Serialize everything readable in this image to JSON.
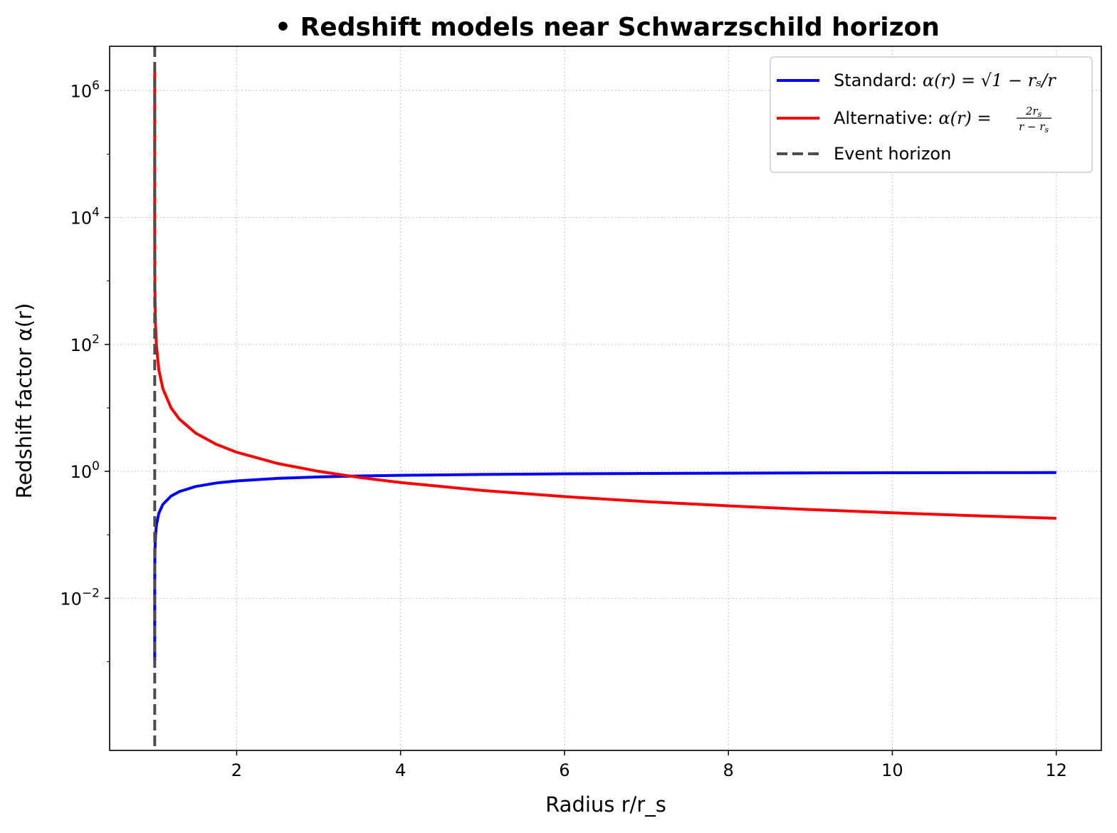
{
  "chart_data": {
    "type": "line",
    "title": "• Redshift models near Schwarzschild horizon",
    "xlabel": "Radius r/r_s",
    "ylabel": "Redshift factor α(r)",
    "x_scale": "linear",
    "y_scale": "log",
    "xlim": [
      0.45,
      12.55
    ],
    "ylim": [
      4e-05,
      5000000
    ],
    "x_ticks": [
      2,
      4,
      6,
      8,
      10,
      12
    ],
    "x_tick_labels": [
      "2",
      "4",
      "6",
      "8",
      "10",
      "12"
    ],
    "y_ticks": [
      0.01,
      1,
      100,
      10000,
      1000000
    ],
    "y_tick_labels": [
      {
        "base": "10",
        "exp": "−2"
      },
      {
        "base": "10",
        "exp": "0"
      },
      {
        "base": "10",
        "exp": "2"
      },
      {
        "base": "10",
        "exp": "4"
      },
      {
        "base": "10",
        "exp": "6"
      }
    ],
    "grid": true,
    "legend_position": "upper-right",
    "series": [
      {
        "name": "Standard: α(r) = √(1 − r_s/r)",
        "legend_text": "Standard: ",
        "legend_math": "α(r) = √1 − rₛ/r",
        "color": "#0000ff",
        "style": "solid",
        "x": [
          1.000001,
          1.00001,
          1.0001,
          1.001,
          1.003,
          1.01,
          1.02,
          1.05,
          1.1,
          1.2,
          1.3,
          1.5,
          1.75,
          2.0,
          2.5,
          3.0,
          3.5,
          4.0,
          5.0,
          6.0,
          7.0,
          8.0,
          9.0,
          10.0,
          11.0,
          12.0
        ],
        "y": [
          0.001,
          0.00316,
          0.01,
          0.0316,
          0.0547,
          0.0995,
          0.14,
          0.218,
          0.302,
          0.408,
          0.48,
          0.577,
          0.655,
          0.707,
          0.775,
          0.816,
          0.845,
          0.866,
          0.894,
          0.913,
          0.926,
          0.935,
          0.943,
          0.949,
          0.953,
          0.957
        ]
      },
      {
        "name": "Alternative: α(r) = 2r_s/(r − r_s)",
        "legend_text": "Alternative: ",
        "legend_math": "α(r) =",
        "color": "#ff0000",
        "style": "solid",
        "x": [
          1.000001,
          1.00001,
          1.0001,
          1.001,
          1.003,
          1.01,
          1.02,
          1.05,
          1.1,
          1.2,
          1.3,
          1.5,
          1.75,
          2.0,
          2.5,
          3.0,
          3.5,
          4.0,
          5.0,
          6.0,
          7.0,
          8.0,
          9.0,
          10.0,
          11.0,
          12.0
        ],
        "y": [
          2000000,
          200000,
          20000,
          2000,
          666.7,
          200,
          100,
          40,
          20,
          10,
          6.67,
          4,
          2.67,
          2,
          1.33,
          1,
          0.8,
          0.667,
          0.5,
          0.4,
          0.333,
          0.286,
          0.25,
          0.222,
          0.2,
          0.182
        ]
      },
      {
        "name": "Event horizon",
        "legend_text": "Event horizon",
        "color": "#4d4d4d",
        "style": "dashed",
        "x_vline": 1.0
      }
    ]
  }
}
